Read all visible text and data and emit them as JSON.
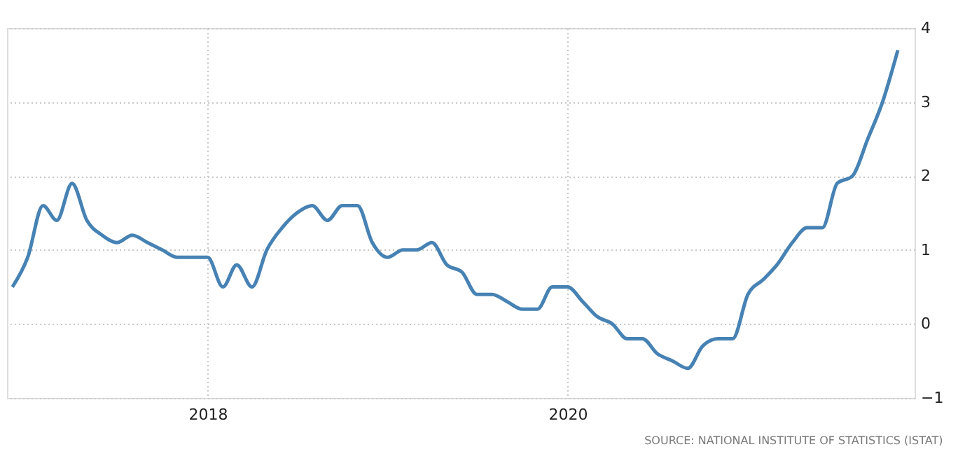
{
  "chart_data": {
    "type": "line",
    "x": [
      "2016-12",
      "2017-01",
      "2017-02",
      "2017-03",
      "2017-04",
      "2017-05",
      "2017-06",
      "2017-07",
      "2017-08",
      "2017-09",
      "2017-10",
      "2017-11",
      "2017-12",
      "2018-01",
      "2018-02",
      "2018-03",
      "2018-04",
      "2018-05",
      "2018-06",
      "2018-07",
      "2018-08",
      "2018-09",
      "2018-10",
      "2018-11",
      "2018-12",
      "2019-01",
      "2019-02",
      "2019-03",
      "2019-04",
      "2019-05",
      "2019-06",
      "2019-07",
      "2019-08",
      "2019-09",
      "2019-10",
      "2019-11",
      "2019-12",
      "2020-01",
      "2020-02",
      "2020-03",
      "2020-04",
      "2020-05",
      "2020-06",
      "2020-07",
      "2020-08",
      "2020-09",
      "2020-10",
      "2020-11",
      "2020-12",
      "2021-01",
      "2021-02",
      "2021-03",
      "2021-04",
      "2021-05",
      "2021-06",
      "2021-07",
      "2021-08",
      "2021-09",
      "2021-10",
      "2021-11"
    ],
    "series": [
      {
        "color": "#4682b4",
        "values": [
          0.5,
          0.9,
          1.6,
          1.4,
          1.9,
          1.4,
          1.2,
          1.1,
          1.2,
          1.1,
          1.0,
          0.9,
          0.9,
          0.9,
          0.5,
          0.8,
          0.5,
          1.0,
          1.3,
          1.5,
          1.6,
          1.4,
          1.6,
          1.6,
          1.1,
          0.9,
          1.0,
          1.0,
          1.1,
          0.8,
          0.7,
          0.4,
          0.4,
          0.3,
          0.2,
          0.2,
          0.5,
          0.5,
          0.3,
          0.1,
          0.0,
          -0.2,
          -0.2,
          -0.4,
          -0.5,
          -0.6,
          -0.3,
          -0.2,
          -0.2,
          0.4,
          0.6,
          0.8,
          1.1,
          1.3,
          1.3,
          1.9,
          2.0,
          2.5,
          3.0,
          3.7
        ]
      }
    ],
    "xlim": [
      "2016-11-20",
      "2021-12-05"
    ],
    "xticks": [
      "2018",
      "2020"
    ],
    "ylim": [
      -1,
      4
    ],
    "yticks": [
      -1,
      0,
      1,
      2,
      3,
      4
    ],
    "grid": true,
    "line_style": "solid",
    "annotations": [
      "SOURCE: NATIONAL INSTITUTE OF STATISTICS (ISTAT)"
    ]
  }
}
